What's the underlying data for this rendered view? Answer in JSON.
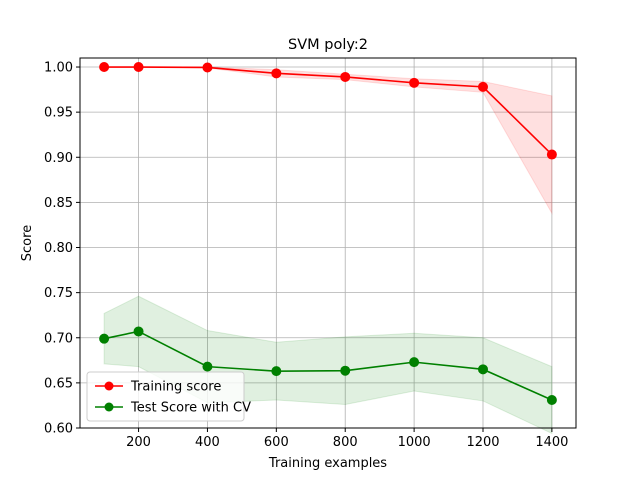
{
  "chart_data": {
    "type": "line",
    "title": "SVM poly:2",
    "xlabel": "Training examples",
    "ylabel": "Score",
    "xlim": [
      30,
      1470
    ],
    "ylim": [
      0.6,
      1.01
    ],
    "grid": true,
    "legend_position": "lower-left",
    "x_ticks": [
      200,
      400,
      600,
      800,
      1000,
      1200,
      1400
    ],
    "y_ticks": [
      "0.60",
      "0.65",
      "0.70",
      "0.75",
      "0.80",
      "0.85",
      "0.90",
      "0.95",
      "1.00"
    ],
    "x": [
      100,
      200,
      400,
      600,
      800,
      1000,
      1200,
      1400
    ],
    "series": [
      {
        "name": "Training score",
        "color": "#ff0000",
        "band_color": "#ff0000",
        "values": [
          1.0,
          1.0,
          0.9995,
          0.993,
          0.989,
          0.9825,
          0.978,
          0.903
        ],
        "upper": [
          1.0,
          1.0,
          1.0,
          0.997,
          0.992,
          0.987,
          0.984,
          0.968
        ],
        "lower": [
          1.0,
          1.0,
          0.999,
          0.989,
          0.986,
          0.978,
          0.972,
          0.838
        ]
      },
      {
        "name": "Test Score with CV",
        "color": "#008000",
        "band_color": "#008000",
        "values": [
          0.699,
          0.707,
          0.668,
          0.663,
          0.6635,
          0.673,
          0.665,
          0.631
        ],
        "upper": [
          0.727,
          0.746,
          0.708,
          0.695,
          0.701,
          0.705,
          0.7,
          0.668
        ],
        "lower": [
          0.671,
          0.668,
          0.628,
          0.631,
          0.626,
          0.641,
          0.63,
          0.594
        ]
      }
    ]
  }
}
